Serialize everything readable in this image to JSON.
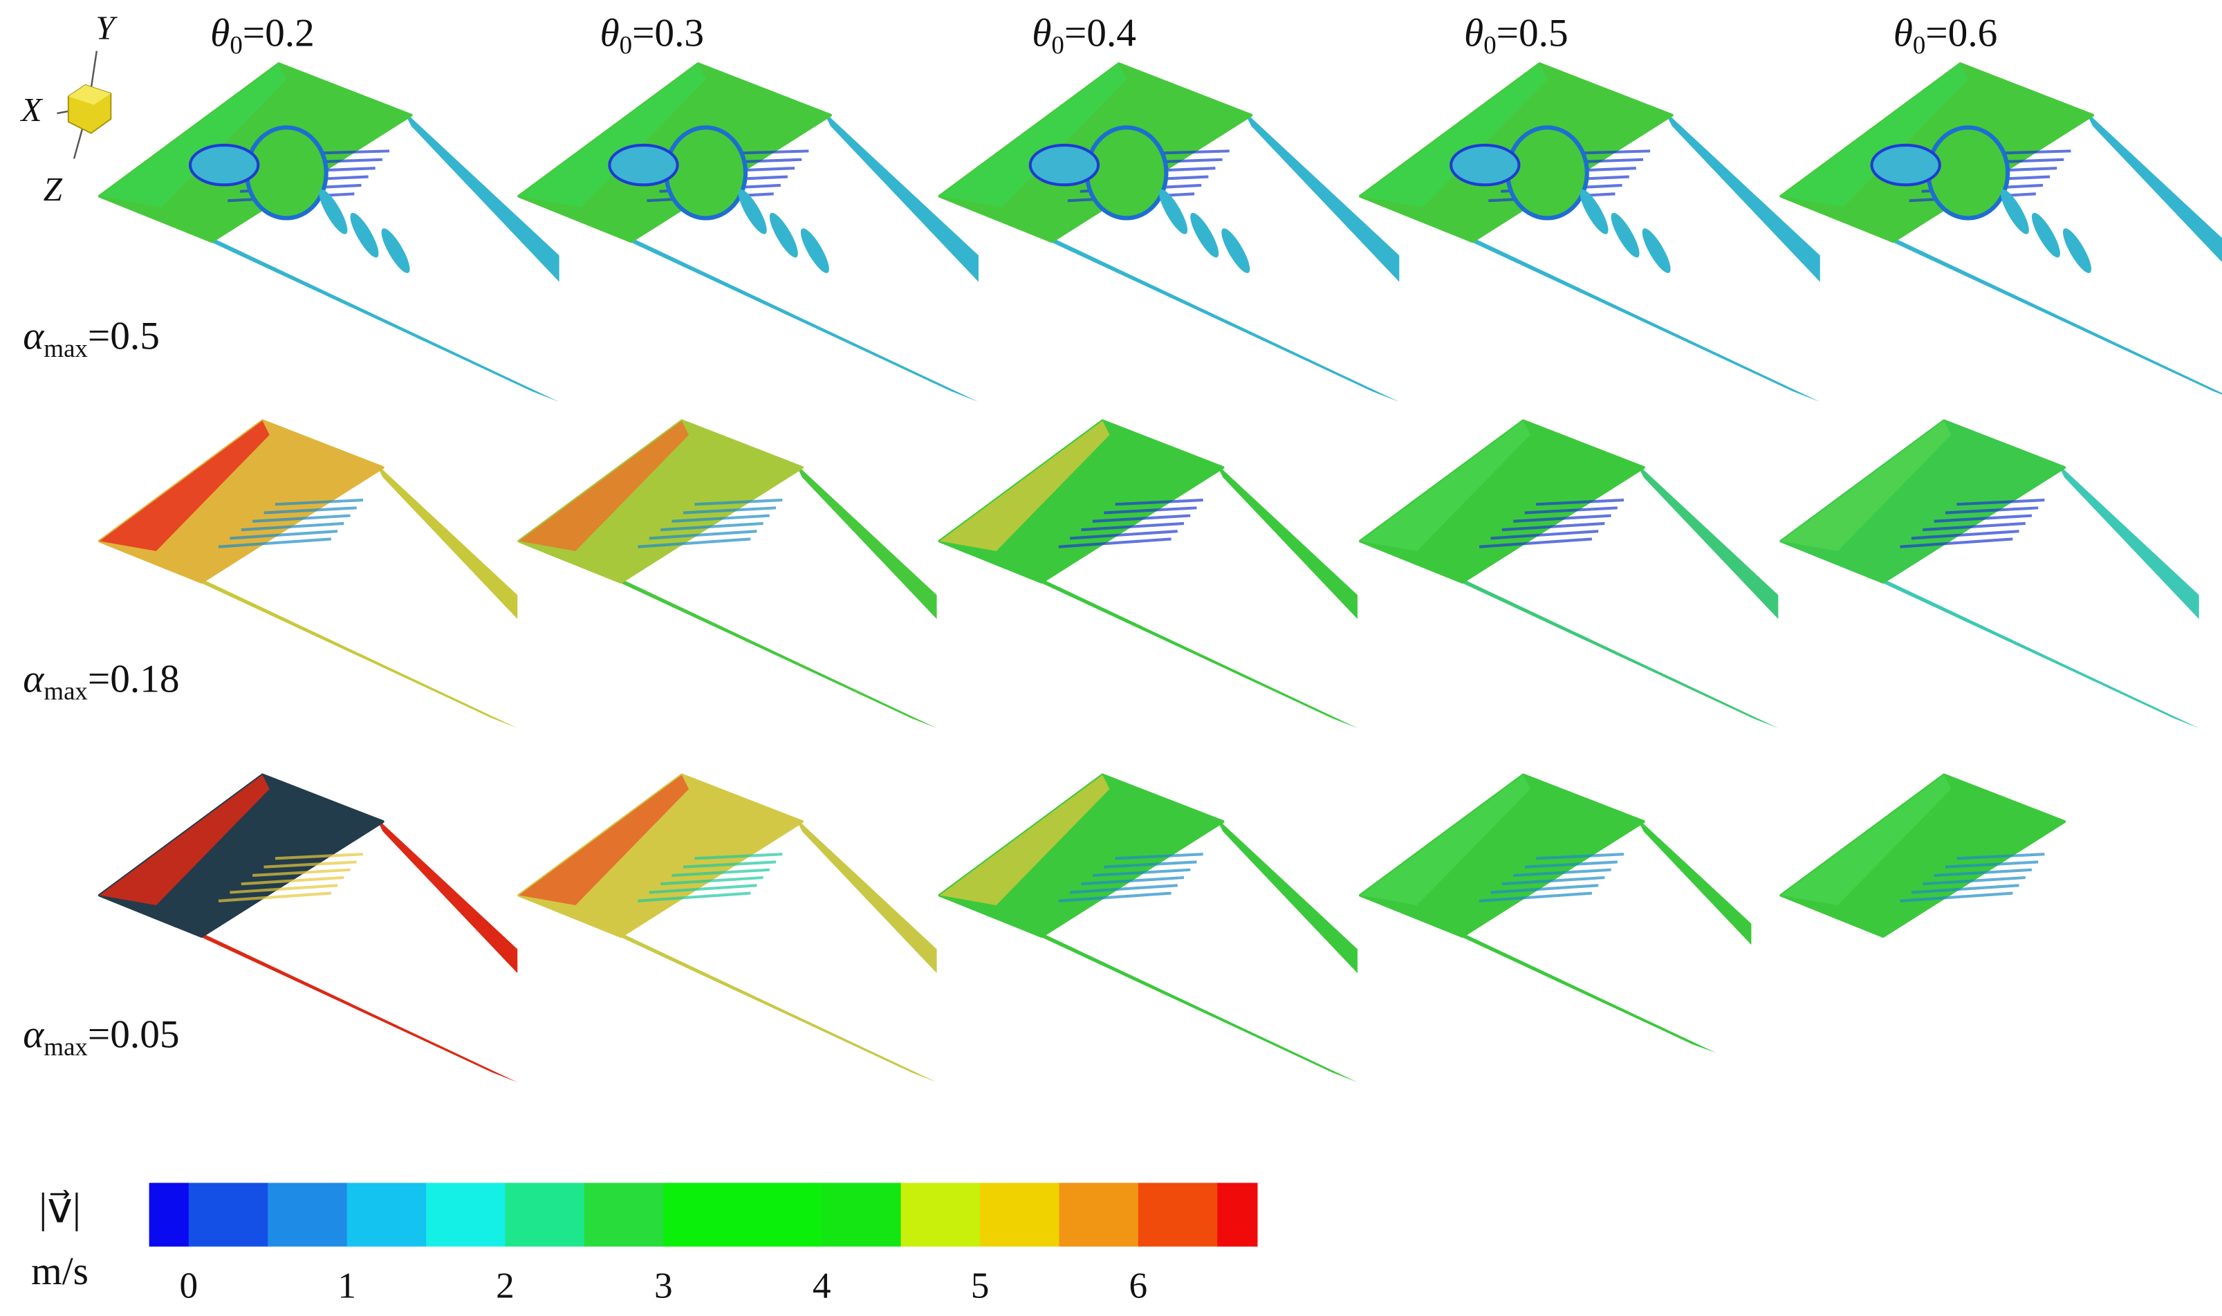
{
  "columns": [
    {
      "symbol": "θ",
      "subscript": "0",
      "text": "=0.2"
    },
    {
      "symbol": "θ",
      "subscript": "0",
      "text": "=0.3"
    },
    {
      "symbol": "θ",
      "subscript": "0",
      "text": "=0.4"
    },
    {
      "symbol": "θ",
      "subscript": "0",
      "text": "=0.5"
    },
    {
      "symbol": "θ",
      "subscript": "0",
      "text": "=0.6"
    }
  ],
  "rows": [
    {
      "symbol": "α",
      "subscript": "max",
      "text": "=0.5"
    },
    {
      "symbol": "α",
      "subscript": "max",
      "text": "=0.18"
    },
    {
      "symbol": "α",
      "subscript": "max",
      "text": "=0.05"
    }
  ],
  "axes": {
    "x": "X",
    "y": "Y",
    "z": "Z"
  },
  "colorbar": {
    "label": "|v⃗|",
    "unit": "m/s",
    "range": [
      -0.25,
      6.75
    ],
    "ticks": [
      0,
      1,
      2,
      3,
      4,
      5,
      6
    ],
    "levels": [
      -0.25,
      0,
      0.5,
      1,
      1.5,
      2,
      2.5,
      3,
      3.5,
      4,
      4.5,
      5,
      5.5,
      6,
      6.5,
      6.75
    ],
    "colors": [
      "#0a0af0",
      "#1450e6",
      "#1e8ce6",
      "#14c3f0",
      "#14f0e6",
      "#1ee68c",
      "#28dc3c",
      "#0af00a",
      "#0af00a",
      "#14e614",
      "#c8f00a",
      "#f0d200",
      "#f09614",
      "#f04b0a",
      "#f00a0a"
    ]
  }
}
